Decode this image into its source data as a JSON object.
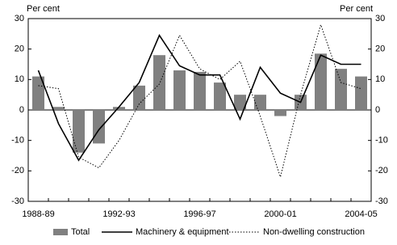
{
  "chart_data": {
    "type": "bar",
    "y_label": "Per cent",
    "y2_label": "Per cent",
    "categories": [
      "1988-89",
      null,
      null,
      null,
      "1992-93",
      null,
      null,
      null,
      "1996-97",
      null,
      null,
      null,
      "2000-01",
      null,
      null,
      null,
      "2004-05"
    ],
    "series": [
      {
        "name": "Total",
        "type": "bar",
        "color": "#808080",
        "values": [
          11,
          1,
          -14,
          -11,
          1,
          8,
          18,
          13,
          12.5,
          9,
          5,
          5,
          -2,
          5,
          18.5,
          13.5,
          11
        ]
      },
      {
        "name": "Machinery & equipment",
        "type": "line",
        "color": "#000000",
        "line_style": "solid",
        "values": [
          13,
          -4.5,
          -16.5,
          -6.5,
          1,
          9,
          24.5,
          14.5,
          11.5,
          11.5,
          -3,
          14,
          5.5,
          2.5,
          18,
          15,
          15
        ]
      },
      {
        "name": "Non-dwelling construction",
        "type": "line",
        "color": "#000000",
        "line_style": "dotted",
        "values": [
          8,
          7,
          -15.5,
          -19,
          -10,
          2,
          8.5,
          24.5,
          13.5,
          10,
          16,
          -2,
          -22,
          5,
          28,
          9,
          7
        ]
      }
    ],
    "ylim": [
      -30,
      30
    ],
    "yticks": [
      -30,
      -20,
      -10,
      0,
      10,
      20,
      30
    ],
    "y2lim": [
      -30,
      30
    ],
    "y2ticks": [
      -30,
      -20,
      -10,
      0,
      10,
      20,
      30
    ],
    "legend": "bottom"
  }
}
